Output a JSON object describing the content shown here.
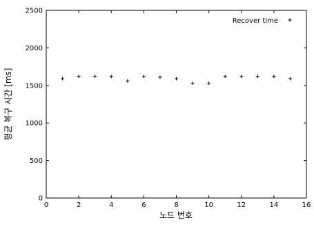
{
  "chart_data": {
    "type": "scatter",
    "title": "",
    "xlabel": "노드 번호",
    "ylabel": "평균 복구 시간 [ms]",
    "xlim": [
      0,
      16
    ],
    "ylim": [
      0,
      2500
    ],
    "xticks": [
      "0",
      "2",
      "4",
      "6",
      "8",
      "10",
      "12",
      "14",
      "16"
    ],
    "yticks": [
      "0",
      "500",
      "1000",
      "1500",
      "2000",
      "2500"
    ],
    "grid": false,
    "legend_position": "top-right",
    "series": [
      {
        "name": "Recover time",
        "marker": "plus",
        "color": "#000000",
        "x": [
          1,
          2,
          3,
          4,
          5,
          6,
          7,
          8,
          9,
          10,
          11,
          12,
          13,
          14,
          15
        ],
        "y": [
          1590,
          1620,
          1620,
          1620,
          1560,
          1620,
          1610,
          1590,
          1530,
          1530,
          1620,
          1620,
          1620,
          1620,
          1590
        ]
      }
    ]
  }
}
